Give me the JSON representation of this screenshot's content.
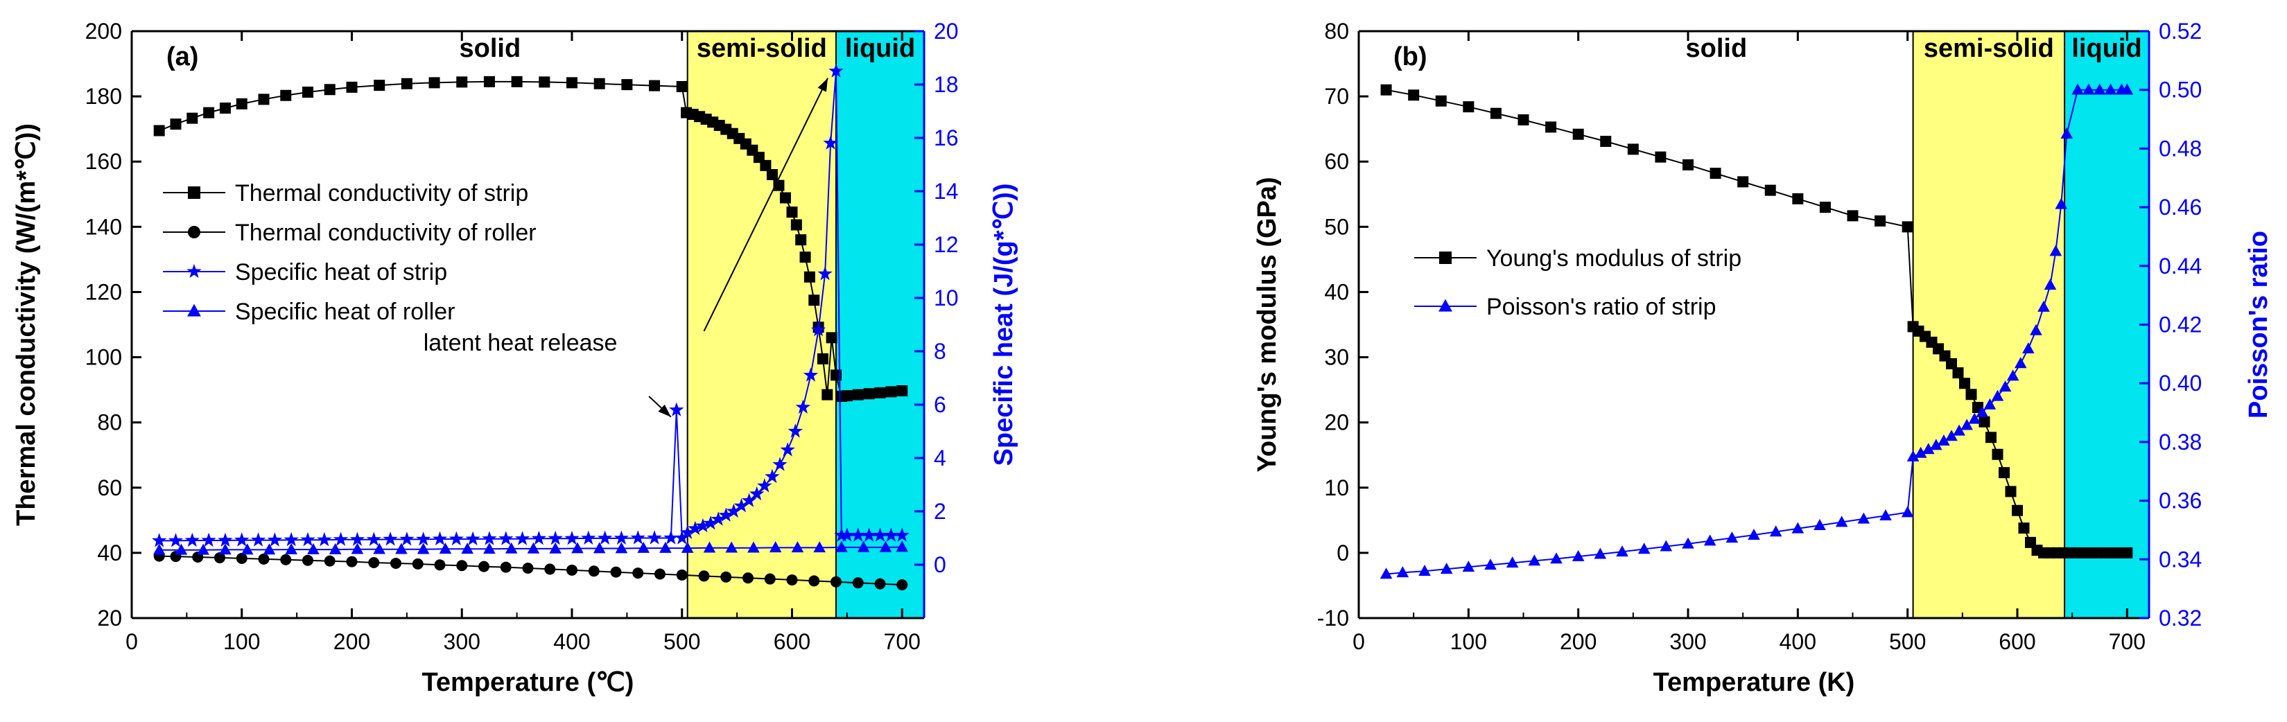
{
  "chart_data": [
    {
      "type": "line",
      "panel_label": "(a)",
      "xlabel": "Temperature (℃)",
      "ylabel_left": "Thermal conductivity (W/(m*℃))",
      "ylabel_right": "Specific heat (J/(g*℃))",
      "xlim": [
        0,
        720
      ],
      "ylim_left": [
        20,
        200
      ],
      "ylim_right": [
        -2,
        20
      ],
      "xticks": [
        0,
        100,
        200,
        300,
        400,
        500,
        600,
        700
      ],
      "yticks_left": [
        20,
        40,
        60,
        80,
        100,
        120,
        140,
        160,
        180,
        200
      ],
      "yticks_right": [
        0,
        2,
        4,
        6,
        8,
        10,
        12,
        14,
        16,
        18,
        20
      ],
      "regions": [
        {
          "name": "solid",
          "x": [
            0,
            500
          ],
          "color": "#ffffff"
        },
        {
          "name": "semi-solid",
          "x": [
            505,
            640
          ],
          "color": "#ffff80"
        },
        {
          "name": "liquid",
          "x": [
            640,
            720
          ],
          "color": "#00e5ee"
        }
      ],
      "annotations": [
        {
          "text": "latent heat release",
          "targets": [
            [
              495,
              5.8
            ],
            [
              635,
              18.5
            ]
          ]
        }
      ],
      "legend_position": "center-left",
      "series": [
        {
          "name": "Thermal conductivity of strip",
          "axis": "left",
          "marker": "square",
          "color": "#000000",
          "x": [
            25,
            40,
            55,
            70,
            85,
            100,
            120,
            140,
            160,
            180,
            200,
            225,
            250,
            275,
            300,
            325,
            350,
            375,
            400,
            425,
            450,
            475,
            500,
            504,
            510,
            516,
            522,
            528,
            534,
            540,
            546,
            552,
            558,
            564,
            570,
            576,
            582,
            588,
            594,
            600,
            604,
            608,
            612,
            616,
            620,
            624,
            628,
            632,
            636,
            640,
            645,
            650,
            660,
            670,
            680,
            690,
            700
          ],
          "y": [
            169.5,
            171.5,
            173.3,
            175.0,
            176.4,
            177.7,
            179.1,
            180.3,
            181.3,
            182.1,
            182.8,
            183.4,
            183.9,
            184.2,
            184.4,
            184.5,
            184.5,
            184.4,
            184.2,
            183.9,
            183.6,
            183.3,
            183.0,
            175.0,
            174.5,
            173.8,
            173.0,
            172.1,
            171.1,
            169.9,
            168.6,
            167.1,
            165.4,
            163.5,
            161.3,
            158.8,
            156.0,
            152.7,
            148.9,
            144.5,
            140.6,
            136.0,
            130.7,
            124.6,
            117.5,
            109.2,
            99.5,
            88.5,
            106.0,
            94.5,
            88.0,
            88.2,
            88.5,
            88.8,
            89.1,
            89.4,
            89.7
          ]
        },
        {
          "name": "Thermal conductivity of roller",
          "axis": "left",
          "marker": "circle",
          "color": "#000000",
          "x": [
            25,
            40,
            60,
            80,
            100,
            120,
            140,
            160,
            180,
            200,
            220,
            240,
            260,
            280,
            300,
            320,
            340,
            360,
            380,
            400,
            420,
            440,
            460,
            480,
            500,
            520,
            540,
            560,
            580,
            600,
            620,
            640,
            660,
            680,
            700
          ],
          "y": [
            39.0,
            38.9,
            38.7,
            38.5,
            38.3,
            38.1,
            37.9,
            37.7,
            37.5,
            37.3,
            37.0,
            36.8,
            36.6,
            36.3,
            36.1,
            35.8,
            35.6,
            35.3,
            35.0,
            34.7,
            34.4,
            34.1,
            33.8,
            33.5,
            33.2,
            32.9,
            32.6,
            32.3,
            32.0,
            31.7,
            31.4,
            31.1,
            30.8,
            30.5,
            30.2
          ]
        },
        {
          "name": "Specific heat of strip",
          "axis": "right",
          "marker": "star",
          "color": "#0000ff",
          "x": [
            25,
            40,
            55,
            70,
            85,
            100,
            115,
            130,
            145,
            160,
            175,
            190,
            205,
            220,
            235,
            250,
            265,
            280,
            295,
            310,
            325,
            340,
            355,
            370,
            385,
            400,
            415,
            430,
            445,
            460,
            475,
            490,
            495,
            500,
            505,
            512,
            519,
            526,
            533,
            540,
            547,
            554,
            561,
            568,
            575,
            582,
            589,
            596,
            603,
            610,
            617,
            624,
            630,
            635,
            640,
            645,
            650,
            660,
            670,
            680,
            690,
            700
          ],
          "y": [
            0.9,
            0.9,
            0.91,
            0.91,
            0.91,
            0.92,
            0.92,
            0.92,
            0.93,
            0.93,
            0.93,
            0.94,
            0.94,
            0.94,
            0.95,
            0.95,
            0.95,
            0.96,
            0.96,
            0.96,
            0.97,
            0.97,
            0.97,
            0.98,
            0.98,
            0.98,
            0.99,
            0.99,
            0.99,
            1.0,
            1.0,
            1.0,
            5.8,
            1.0,
            1.2,
            1.35,
            1.45,
            1.55,
            1.7,
            1.85,
            2.0,
            2.2,
            2.4,
            2.65,
            2.95,
            3.3,
            3.75,
            4.3,
            5.0,
            5.9,
            7.1,
            8.8,
            10.9,
            15.8,
            18.5,
            1.1,
            1.1,
            1.1,
            1.1,
            1.1,
            1.1,
            1.1
          ]
        },
        {
          "name": "Specific heat of roller",
          "axis": "right",
          "marker": "triangle",
          "color": "#0000ff",
          "x": [
            25,
            45,
            65,
            85,
            105,
            125,
            145,
            165,
            185,
            205,
            225,
            245,
            265,
            285,
            305,
            325,
            345,
            365,
            385,
            405,
            425,
            445,
            465,
            485,
            505,
            525,
            545,
            565,
            585,
            605,
            625,
            645,
            665,
            685,
            700
          ],
          "y": [
            0.55,
            0.55,
            0.55,
            0.56,
            0.56,
            0.56,
            0.57,
            0.57,
            0.57,
            0.58,
            0.58,
            0.58,
            0.58,
            0.59,
            0.59,
            0.59,
            0.6,
            0.6,
            0.6,
            0.61,
            0.61,
            0.61,
            0.62,
            0.62,
            0.62,
            0.63,
            0.63,
            0.63,
            0.64,
            0.64,
            0.64,
            0.65,
            0.65,
            0.65,
            0.66
          ]
        }
      ]
    },
    {
      "type": "line",
      "panel_label": "(b)",
      "xlabel": "Temperature (K)",
      "ylabel_left": "Young's modulus (GPa)",
      "ylabel_right": "Poisson's ratio",
      "xlim": [
        0,
        720
      ],
      "ylim_left": [
        -10,
        80
      ],
      "ylim_right": [
        0.32,
        0.52
      ],
      "xticks": [
        0,
        100,
        200,
        300,
        400,
        500,
        600,
        700
      ],
      "yticks_left": [
        -10,
        0,
        10,
        20,
        30,
        40,
        50,
        60,
        70,
        80
      ],
      "yticks_right": [
        0.32,
        0.34,
        0.36,
        0.38,
        0.4,
        0.42,
        0.44,
        0.46,
        0.48,
        0.5,
        0.52
      ],
      "regions": [
        {
          "name": "solid",
          "x": [
            0,
            500
          ],
          "color": "#ffffff"
        },
        {
          "name": "semi-solid",
          "x": [
            505,
            643
          ],
          "color": "#ffff80"
        },
        {
          "name": "liquid",
          "x": [
            643,
            720
          ],
          "color": "#00e5ee"
        }
      ],
      "legend_position": "center-left",
      "series": [
        {
          "name": "Young's modulus of strip",
          "axis": "left",
          "marker": "square",
          "color": "#000000",
          "x": [
            25,
            50,
            75,
            100,
            125,
            150,
            175,
            200,
            225,
            250,
            275,
            300,
            325,
            350,
            375,
            400,
            425,
            450,
            475,
            500,
            505,
            510,
            516,
            522,
            528,
            534,
            540,
            546,
            552,
            558,
            564,
            570,
            576,
            582,
            588,
            594,
            600,
            606,
            612,
            618,
            624,
            630,
            636,
            642,
            650,
            660,
            670,
            680,
            690,
            700
          ],
          "y": [
            71.0,
            70.2,
            69.3,
            68.4,
            67.4,
            66.4,
            65.3,
            64.2,
            63.1,
            61.9,
            60.7,
            59.5,
            58.2,
            56.9,
            55.6,
            54.3,
            53.0,
            51.7,
            50.9,
            50.0,
            34.7,
            34.0,
            33.2,
            32.3,
            31.3,
            30.2,
            29.0,
            27.6,
            26.0,
            24.3,
            22.3,
            20.1,
            17.7,
            15.1,
            12.3,
            9.4,
            6.5,
            3.8,
            1.6,
            0.4,
            0.0,
            0.0,
            0.0,
            0.0,
            0.0,
            0.0,
            0.0,
            0.0,
            0.0,
            0.0
          ]
        },
        {
          "name": "Poisson's ratio of strip",
          "axis": "right",
          "marker": "triangle",
          "color": "#0000ff",
          "x": [
            25,
            40,
            60,
            80,
            100,
            120,
            140,
            160,
            180,
            200,
            220,
            240,
            260,
            280,
            300,
            320,
            340,
            360,
            380,
            400,
            420,
            440,
            460,
            480,
            500,
            505,
            512,
            519,
            526,
            533,
            540,
            547,
            554,
            561,
            568,
            575,
            582,
            589,
            596,
            603,
            610,
            617,
            624,
            630,
            635,
            640,
            645,
            655,
            665,
            675,
            685,
            695,
            700
          ],
          "y": [
            0.335,
            0.3355,
            0.336,
            0.3367,
            0.3374,
            0.3381,
            0.3388,
            0.3395,
            0.3402,
            0.341,
            0.3418,
            0.3426,
            0.3435,
            0.3444,
            0.3453,
            0.3463,
            0.3473,
            0.3483,
            0.3494,
            0.3505,
            0.3516,
            0.3527,
            0.3538,
            0.3549,
            0.356,
            0.375,
            0.3762,
            0.3775,
            0.3789,
            0.3804,
            0.382,
            0.3838,
            0.3857,
            0.3878,
            0.3901,
            0.3927,
            0.3956,
            0.3988,
            0.4025,
            0.4068,
            0.4118,
            0.418,
            0.426,
            0.4335,
            0.445,
            0.461,
            0.485,
            0.5,
            0.5,
            0.5,
            0.5,
            0.5,
            0.5
          ]
        }
      ]
    }
  ]
}
